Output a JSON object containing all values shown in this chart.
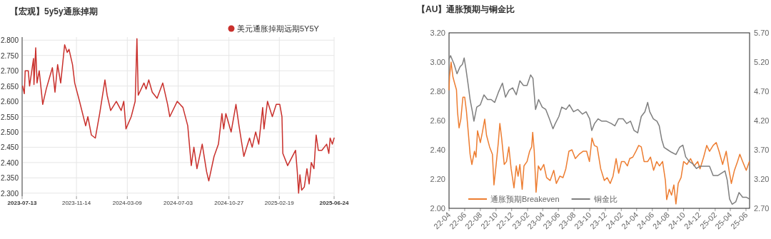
{
  "chart_data": [
    {
      "type": "line",
      "title": "【宏观】5y5y通胀掉期",
      "xlim": [
        "2023-07-13",
        "2025-06-24"
      ],
      "xticks": [
        "2023-07-13",
        "2023-11-14",
        "2024-03-09",
        "2024-07-03",
        "2024-10-27",
        "2025-02-19",
        "2025-06-24"
      ],
      "ylim": [
        2.29,
        2.81
      ],
      "yticks": [
        {
          "value": 2.3,
          "label": "2.300"
        },
        {
          "value": 2.35,
          "label": "2.350"
        },
        {
          "value": 2.4,
          "label": "2.400"
        },
        {
          "value": 2.45,
          "label": "2.450"
        },
        {
          "value": 2.5,
          "label": "2.500"
        },
        {
          "value": 2.55,
          "label": "2.550"
        },
        {
          "value": 2.6,
          "label": "2.600"
        },
        {
          "value": 2.65,
          "label": "2.650"
        },
        {
          "value": 2.7,
          "label": "2.700"
        },
        {
          "value": 2.75,
          "label": "2.750"
        },
        {
          "value": 2.8,
          "label": "2.800"
        }
      ],
      "grid": true,
      "legend": "top right",
      "series": [
        {
          "name": "美元通胀掉期远期5Y5Y",
          "color": "#c9302c",
          "x": [
            "2023-07-14",
            "2023-07-18",
            "2023-07-20",
            "2023-07-27",
            "2023-07-30",
            "2023-08-08",
            "2023-08-09",
            "2023-08-13",
            "2023-08-16",
            "2023-08-21",
            "2023-08-29",
            "2023-09-06",
            "2023-09-14",
            "2023-09-20",
            "2023-09-26",
            "2023-10-02",
            "2023-10-09",
            "2023-10-18",
            "2023-10-24",
            "2023-10-28",
            "2023-11-05",
            "2023-11-10",
            "2023-11-21",
            "2023-12-05",
            "2023-12-10",
            "2023-12-18",
            "2023-12-27",
            "2024-01-06",
            "2024-01-18",
            "2024-01-23",
            "2024-01-31",
            "2024-02-13",
            "2024-02-24",
            "2024-03-01",
            "2024-03-06",
            "2024-03-18",
            "2024-03-27",
            "2024-03-31",
            "2024-04-03",
            "2024-04-16",
            "2024-04-21",
            "2024-04-27",
            "2024-05-05",
            "2024-05-16",
            "2024-05-29",
            "2024-06-09",
            "2024-06-14",
            "2024-07-01",
            "2024-07-14",
            "2024-07-25",
            "2024-08-02",
            "2024-08-08",
            "2024-08-15",
            "2024-08-27",
            "2024-09-06",
            "2024-09-11",
            "2024-09-23",
            "2024-10-03",
            "2024-10-11",
            "2024-10-15",
            "2024-10-20",
            "2024-11-01",
            "2024-11-12",
            "2024-11-19",
            "2024-11-30",
            "2024-12-13",
            "2024-12-19",
            "2024-12-27",
            "2025-01-03",
            "2025-01-12",
            "2025-01-15",
            "2025-01-23",
            "2025-02-03",
            "2025-02-12",
            "2025-02-20",
            "2025-02-25",
            "2025-02-27",
            "2025-03-10",
            "2025-03-28",
            "2025-04-01",
            "2025-04-04",
            "2025-04-07",
            "2025-04-11",
            "2025-04-17",
            "2025-04-23",
            "2025-04-28",
            "2025-05-03",
            "2025-05-09",
            "2025-05-14",
            "2025-05-19",
            "2025-05-27",
            "2025-06-07",
            "2025-06-12",
            "2025-06-15",
            "2025-06-20",
            "2025-06-24"
          ],
          "values": [
            2.65,
            2.625,
            2.7,
            2.7,
            2.65,
            2.74,
            2.655,
            2.775,
            2.66,
            2.7,
            2.59,
            2.64,
            2.68,
            2.71,
            2.63,
            2.72,
            2.66,
            2.785,
            2.76,
            2.77,
            2.72,
            2.66,
            2.6,
            2.52,
            2.55,
            2.49,
            2.48,
            2.56,
            2.67,
            2.62,
            2.57,
            2.6,
            2.57,
            2.6,
            2.51,
            2.55,
            2.6,
            2.805,
            2.62,
            2.66,
            2.64,
            2.67,
            2.63,
            2.61,
            2.66,
            2.59,
            2.55,
            2.6,
            2.58,
            2.52,
            2.39,
            2.45,
            2.38,
            2.46,
            2.37,
            2.34,
            2.42,
            2.46,
            2.56,
            2.51,
            2.56,
            2.5,
            2.59,
            2.52,
            2.42,
            2.48,
            2.45,
            2.5,
            2.46,
            2.58,
            2.51,
            2.6,
            2.55,
            2.59,
            2.59,
            2.55,
            2.43,
            2.39,
            2.44,
            2.37,
            2.3,
            2.36,
            2.31,
            2.32,
            2.38,
            2.33,
            2.4,
            2.38,
            2.49,
            2.44,
            2.44,
            2.46,
            2.43,
            2.48,
            2.46,
            2.48
          ]
        }
      ]
    },
    {
      "type": "line",
      "title": "【AU】通胀预期与铜金比",
      "xlim": [
        "2022-04-01",
        "2025-06-15"
      ],
      "xticks": [
        {
          "value": "2022-04",
          "label": "22-04"
        },
        {
          "value": "2022-06",
          "label": "22-06"
        },
        {
          "value": "2022-08",
          "label": "22-08"
        },
        {
          "value": "2022-10",
          "label": "22-10"
        },
        {
          "value": "2022-12",
          "label": "22-12"
        },
        {
          "value": "2023-02",
          "label": "23-02"
        },
        {
          "value": "2023-04",
          "label": "23-04"
        },
        {
          "value": "2023-06",
          "label": "23-06"
        },
        {
          "value": "2023-08",
          "label": "23-08"
        },
        {
          "value": "2023-10",
          "label": "23-10"
        },
        {
          "value": "2023-12",
          "label": "23-12"
        },
        {
          "value": "2024-02",
          "label": "24-02"
        },
        {
          "value": "2024-04",
          "label": "24-04"
        },
        {
          "value": "2024-06",
          "label": "24-06"
        },
        {
          "value": "2024-08",
          "label": "24-08"
        },
        {
          "value": "2024-10",
          "label": "24-10"
        },
        {
          "value": "2024-12",
          "label": "24-12"
        },
        {
          "value": "2025-02",
          "label": "25-02"
        },
        {
          "value": "2025-04",
          "label": "25-04"
        },
        {
          "value": "2025-06",
          "label": "25-06"
        }
      ],
      "ylim": [
        2.0,
        3.2
      ],
      "yticks": [
        {
          "value": 2.0,
          "label": "2.00"
        },
        {
          "value": 2.2,
          "label": "2.20"
        },
        {
          "value": 2.4,
          "label": "2.40"
        },
        {
          "value": 2.6,
          "label": "2.60"
        },
        {
          "value": 2.8,
          "label": "2.80"
        },
        {
          "value": 3.0,
          "label": "3.00"
        },
        {
          "value": 3.2,
          "label": "3.20"
        }
      ],
      "y2lim": [
        2.7,
        5.7
      ],
      "y2ticks": [
        {
          "value": 2.7,
          "label": "2.70"
        },
        {
          "value": 3.2,
          "label": "3.20"
        },
        {
          "value": 3.7,
          "label": "3.70"
        },
        {
          "value": 4.2,
          "label": "4.20"
        },
        {
          "value": 4.7,
          "label": "4.70"
        },
        {
          "value": 5.2,
          "label": "5.20"
        },
        {
          "value": 5.7,
          "label": "5.70"
        }
      ],
      "legend": "bottom left",
      "series": [
        {
          "name": "通胀预期Breakeven",
          "color": "#ed7d31",
          "x": [
            "2022-04-01",
            "2022-04-03",
            "2022-04-09",
            "2022-04-16",
            "2022-04-22",
            "2022-04-30",
            "2022-05-04",
            "2022-05-10",
            "2022-05-17",
            "2022-05-25",
            "2022-06-01",
            "2022-06-08",
            "2022-06-15",
            "2022-06-22",
            "2022-06-29",
            "2022-07-09",
            "2022-07-15",
            "2022-07-21",
            "2022-08-01",
            "2022-08-09",
            "2022-08-18",
            "2022-08-25",
            "2022-09-06",
            "2022-09-17",
            "2022-09-23",
            "2022-10-01",
            "2022-10-10",
            "2022-10-16",
            "2022-10-23",
            "2022-11-02",
            "2022-11-11",
            "2022-11-20",
            "2022-11-29",
            "2022-12-10",
            "2022-12-19",
            "2022-12-26",
            "2023-01-02",
            "2023-01-11",
            "2023-01-18",
            "2023-01-30",
            "2023-02-09",
            "2023-02-17",
            "2023-02-21",
            "2023-02-27",
            "2023-03-06",
            "2023-03-15",
            "2023-03-24",
            "2023-04-05",
            "2023-04-16",
            "2023-04-30",
            "2023-05-14",
            "2023-05-24",
            "2023-06-07",
            "2023-06-19",
            "2023-06-30",
            "2023-07-12",
            "2023-07-24",
            "2023-08-06",
            "2023-08-21",
            "2023-09-05",
            "2023-09-19",
            "2023-09-30",
            "2023-10-10",
            "2023-10-19",
            "2023-10-30",
            "2023-11-13",
            "2023-11-27",
            "2023-12-08",
            "2023-12-20",
            "2023-12-31",
            "2024-01-12",
            "2024-01-22",
            "2024-02-02",
            "2024-02-13",
            "2024-02-25",
            "2024-03-05",
            "2024-03-17",
            "2024-03-29",
            "2024-04-09",
            "2024-04-19",
            "2024-04-30",
            "2024-05-14",
            "2024-05-25",
            "2024-06-06",
            "2024-06-18",
            "2024-06-29",
            "2024-07-11",
            "2024-07-22",
            "2024-07-27",
            "2024-08-06",
            "2024-08-15",
            "2024-08-24",
            "2024-09-01",
            "2024-09-10",
            "2024-09-21",
            "2024-10-01",
            "2024-10-14",
            "2024-10-28",
            "2024-11-11",
            "2024-11-25",
            "2024-12-04",
            "2024-12-18",
            "2024-12-30",
            "2025-01-10",
            "2025-01-24",
            "2025-02-05",
            "2025-02-16",
            "2025-03-02",
            "2025-03-16",
            "2025-03-27",
            "2025-04-05",
            "2025-04-17",
            "2025-04-29",
            "2025-05-08",
            "2025-05-19",
            "2025-06-02",
            "2025-06-14"
          ],
          "values": [
            2.81,
            2.9,
            3.0,
            2.9,
            2.86,
            2.81,
            2.66,
            2.55,
            2.61,
            2.76,
            2.76,
            2.66,
            2.52,
            2.37,
            2.3,
            2.39,
            2.35,
            2.53,
            2.45,
            2.52,
            2.61,
            2.5,
            2.42,
            2.37,
            2.16,
            2.29,
            2.45,
            2.58,
            2.48,
            2.3,
            2.32,
            2.42,
            2.27,
            2.14,
            2.29,
            2.22,
            2.3,
            2.13,
            2.29,
            2.32,
            2.39,
            2.42,
            2.52,
            2.39,
            2.11,
            2.29,
            2.26,
            2.3,
            2.21,
            2.19,
            2.26,
            2.17,
            2.22,
            2.21,
            2.27,
            2.39,
            2.4,
            2.34,
            2.37,
            2.39,
            2.39,
            2.32,
            2.48,
            2.43,
            2.42,
            2.27,
            2.19,
            2.21,
            2.17,
            2.22,
            2.34,
            2.24,
            2.32,
            2.32,
            2.29,
            2.34,
            2.35,
            2.39,
            2.43,
            2.42,
            2.32,
            2.32,
            2.35,
            2.26,
            2.32,
            2.29,
            2.32,
            2.19,
            2.06,
            2.13,
            2.09,
            2.16,
            2.03,
            2.17,
            2.21,
            2.32,
            2.3,
            2.34,
            2.29,
            2.32,
            2.27,
            2.35,
            2.43,
            2.39,
            2.43,
            2.45,
            2.39,
            2.3,
            2.39,
            2.26,
            2.17,
            2.26,
            2.32,
            2.37,
            2.32,
            2.26,
            2.32
          ]
        },
        {
          "name": "铜金比",
          "color": "#7f7f7f",
          "axis": "y2",
          "x": [
            "2022-04-01",
            "2022-04-07",
            "2022-04-21",
            "2022-05-02",
            "2022-05-14",
            "2022-05-23",
            "2022-05-30",
            "2022-06-06",
            "2022-06-15",
            "2022-06-22",
            "2022-07-01",
            "2022-07-07",
            "2022-07-18",
            "2022-08-01",
            "2022-08-15",
            "2022-08-29",
            "2022-09-12",
            "2022-09-26",
            "2022-10-10",
            "2022-10-26",
            "2022-11-07",
            "2022-11-21",
            "2022-12-05",
            "2022-12-19",
            "2023-01-02",
            "2023-01-16",
            "2023-01-30",
            "2023-02-13",
            "2023-02-22",
            "2023-03-04",
            "2023-03-16",
            "2023-03-30",
            "2023-04-13",
            "2023-04-27",
            "2023-05-11",
            "2023-05-20",
            "2023-06-03",
            "2023-06-14",
            "2023-07-01",
            "2023-07-14",
            "2023-07-30",
            "2023-08-16",
            "2023-09-03",
            "2023-09-17",
            "2023-10-01",
            "2023-10-09",
            "2023-10-20",
            "2023-11-03",
            "2023-11-17",
            "2023-12-05",
            "2023-12-24",
            "2024-01-07",
            "2024-01-21",
            "2024-02-08",
            "2024-02-22",
            "2024-03-08",
            "2024-03-22",
            "2024-04-05",
            "2024-04-19",
            "2024-05-03",
            "2024-05-14",
            "2024-05-22",
            "2024-06-05",
            "2024-06-19",
            "2024-06-28",
            "2024-07-08",
            "2024-07-17",
            "2024-07-31",
            "2024-08-14",
            "2024-09-01",
            "2024-09-15",
            "2024-09-28",
            "2024-10-09",
            "2024-10-23",
            "2024-11-06",
            "2024-11-20",
            "2024-12-04",
            "2024-12-22",
            "2025-01-10",
            "2025-01-24",
            "2025-02-11",
            "2025-02-25",
            "2025-03-11",
            "2025-03-20",
            "2025-03-29",
            "2025-04-08",
            "2025-04-22",
            "2025-05-05",
            "2025-05-19",
            "2025-06-02",
            "2025-06-14"
          ],
          "values": [
            5.25,
            5.31,
            5.16,
            5.0,
            5.12,
            5.16,
            5.27,
            5.08,
            4.8,
            4.56,
            4.35,
            4.19,
            4.43,
            4.47,
            4.64,
            4.56,
            4.56,
            4.51,
            4.68,
            4.84,
            4.6,
            4.72,
            4.76,
            4.64,
            4.88,
            4.8,
            4.8,
            4.98,
            4.92,
            4.39,
            4.56,
            4.43,
            4.39,
            4.23,
            4.06,
            4.15,
            4.27,
            4.43,
            4.39,
            4.47,
            4.35,
            4.39,
            4.31,
            4.35,
            4.23,
            4.03,
            4.15,
            4.23,
            4.19,
            4.19,
            4.15,
            4.11,
            4.23,
            4.23,
            4.15,
            4.19,
            4.03,
            3.99,
            4.27,
            4.35,
            4.51,
            4.35,
            4.23,
            4.19,
            4.11,
            3.87,
            3.74,
            3.7,
            3.66,
            3.62,
            3.74,
            3.78,
            3.58,
            3.5,
            3.46,
            3.38,
            3.42,
            3.42,
            3.42,
            3.26,
            3.26,
            3.3,
            3.34,
            3.18,
            2.86,
            2.77,
            2.81,
            2.97,
            2.89,
            2.89,
            2.86
          ]
        }
      ]
    }
  ]
}
